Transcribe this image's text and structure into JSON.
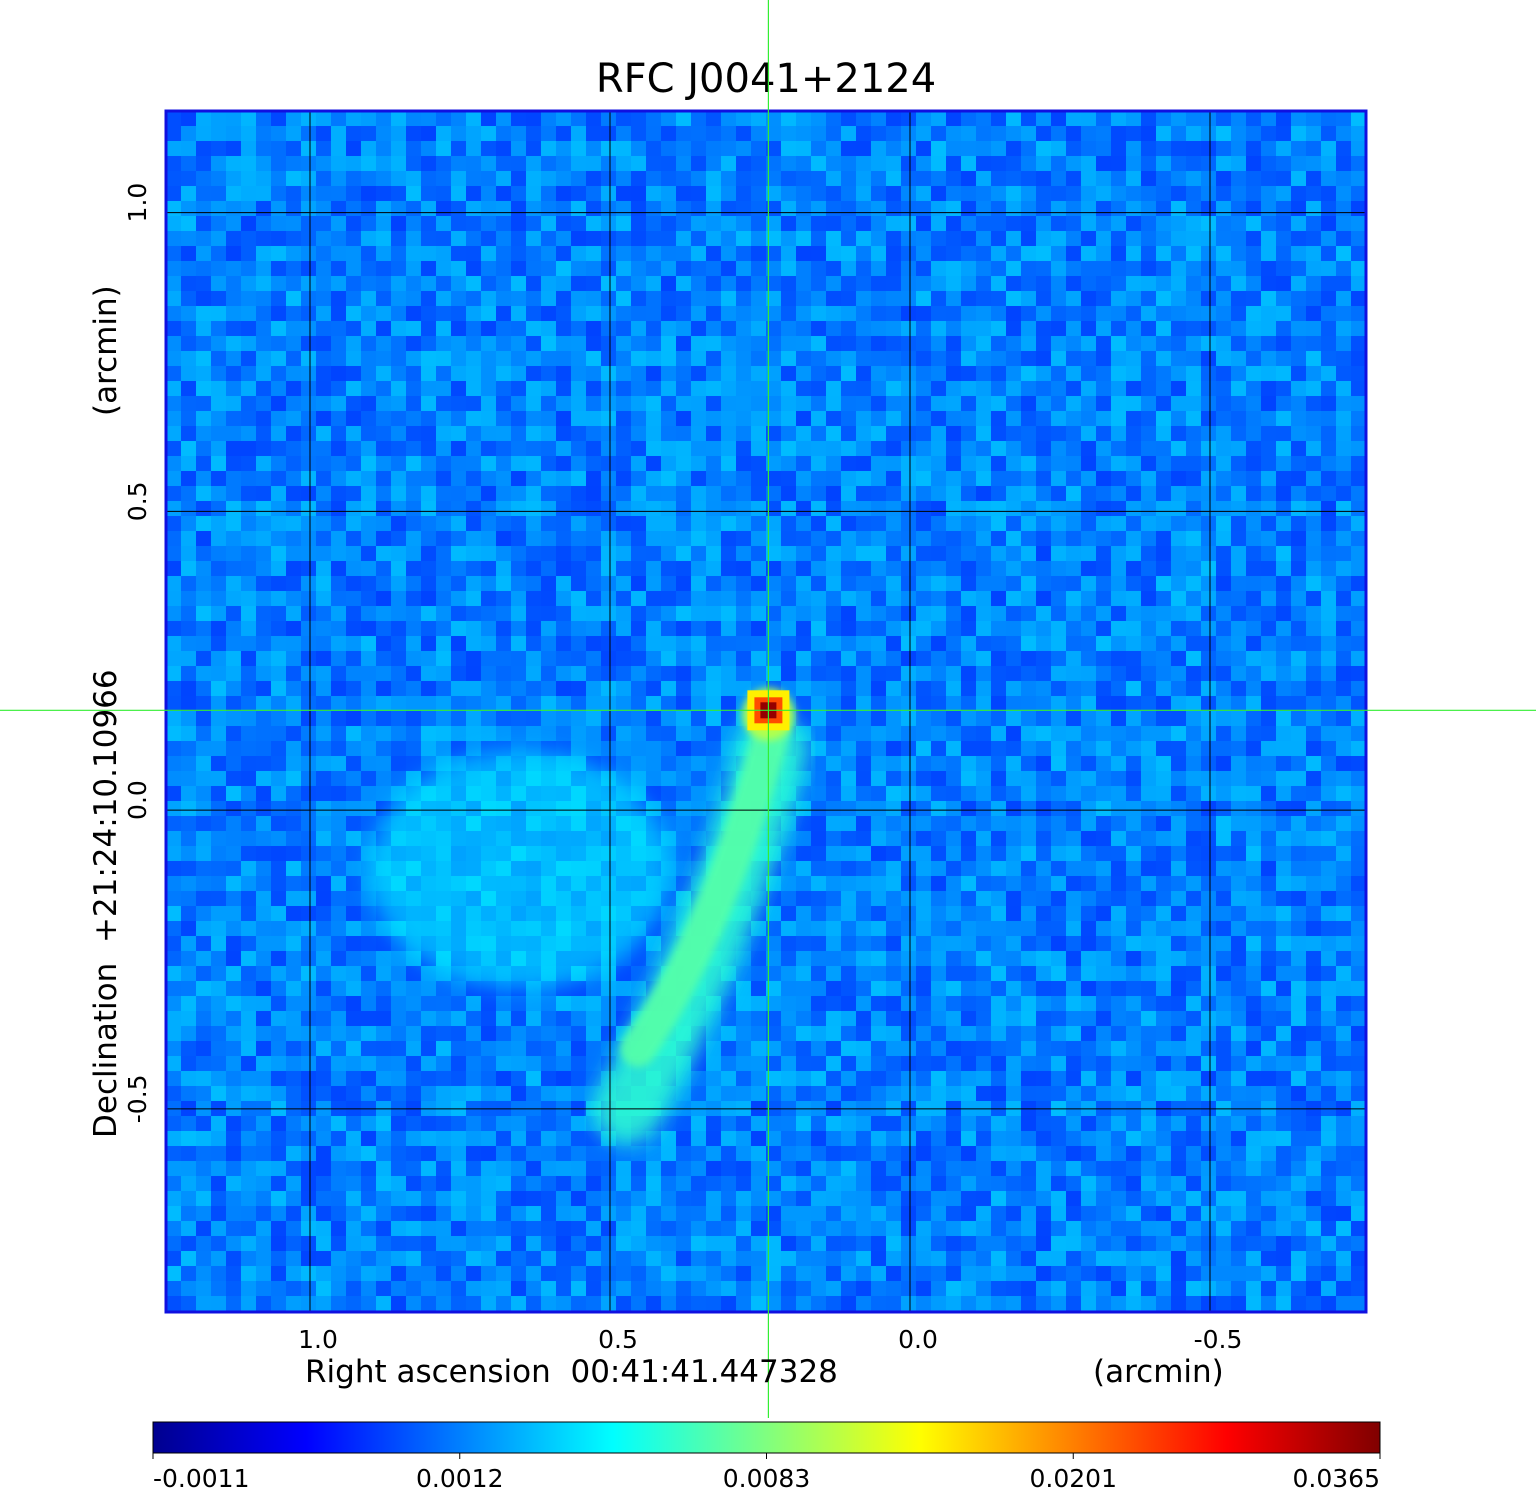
{
  "chart_data": {
    "type": "heatmap",
    "title": "RFC J0041+2124",
    "xlabel": "Right ascension  00:41:41.447328",
    "xunit": "(arcmin)",
    "ylabel": "Declination  +21:24:10.10966",
    "yunit": "(arcmin)",
    "xticks": [
      {
        "value": 1.0,
        "label": "1.0"
      },
      {
        "value": 0.5,
        "label": "0.5"
      },
      {
        "value": 0.0,
        "label": "0.0"
      },
      {
        "value": -0.5,
        "label": "-0.5"
      }
    ],
    "yticks": [
      {
        "value": 1.0,
        "label": "1.0"
      },
      {
        "value": 0.5,
        "label": "0.5"
      },
      {
        "value": 0.0,
        "label": "0.0"
      },
      {
        "value": -0.5,
        "label": "-0.5"
      }
    ],
    "xlim": [
      1.24,
      -0.76
    ],
    "ylim": [
      -0.84,
      1.17
    ],
    "x_axis_reversed": true,
    "grid": true,
    "crosshair": {
      "x": 0.236,
      "y": 0.167
    },
    "colormap": "jet",
    "colorbar": {
      "ticks": [
        "-0.0011",
        "0.0012",
        "0.0083",
        "0.0201",
        "0.0365"
      ],
      "min": -0.0011,
      "max": 0.0365
    },
    "features": [
      {
        "name": "core",
        "x": 0.236,
        "y": 0.167,
        "peak": 0.0365
      },
      {
        "name": "jet",
        "x_range": [
          0.47,
          0.23
        ],
        "y_range": [
          -0.5,
          0.1
        ],
        "level": 0.004
      },
      {
        "name": "diffuse lobe",
        "x_range": [
          0.9,
          0.4
        ],
        "y_range": [
          -0.3,
          0.1
        ],
        "level": 0.002
      }
    ]
  },
  "colors": {
    "title": "#1010d8",
    "frame": "#1010e0",
    "crosshair": "#33ee33",
    "grid": "#000000"
  }
}
